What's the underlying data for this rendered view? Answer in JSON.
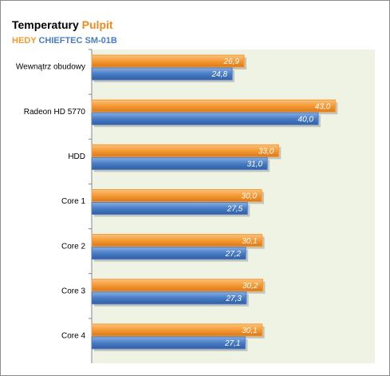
{
  "chart_data": {
    "type": "hbar",
    "title": [
      "Temperatury",
      "Pulpit"
    ],
    "categories": [
      "Wewnątrz obudowy",
      "Radeon HD 5770",
      "HDD",
      "Core 1",
      "Core 2",
      "Core 3",
      "Core 4"
    ],
    "series": [
      {
        "name": "HEDY",
        "color": "#f59a33",
        "values": [
          26.9,
          43.0,
          33.0,
          30.0,
          30.1,
          30.2,
          30.1
        ],
        "value_labels": [
          "26,9",
          "43,0",
          "33,0",
          "30,0",
          "30,1",
          "30,2",
          "30,1"
        ]
      },
      {
        "name": "CHIEFTEC SM-01B",
        "color": "#4a7dc5",
        "values": [
          24.8,
          40.0,
          31.0,
          27.5,
          27.2,
          27.3,
          27.1
        ],
        "value_labels": [
          "24,8",
          "40,0",
          "31,0",
          "27,5",
          "27,2",
          "27,3",
          "27,1"
        ]
      }
    ],
    "xlim": [
      0,
      50
    ],
    "title_colors": [
      "#000000",
      "#f08a1c"
    ],
    "plot_background": "#eef3e3"
  }
}
